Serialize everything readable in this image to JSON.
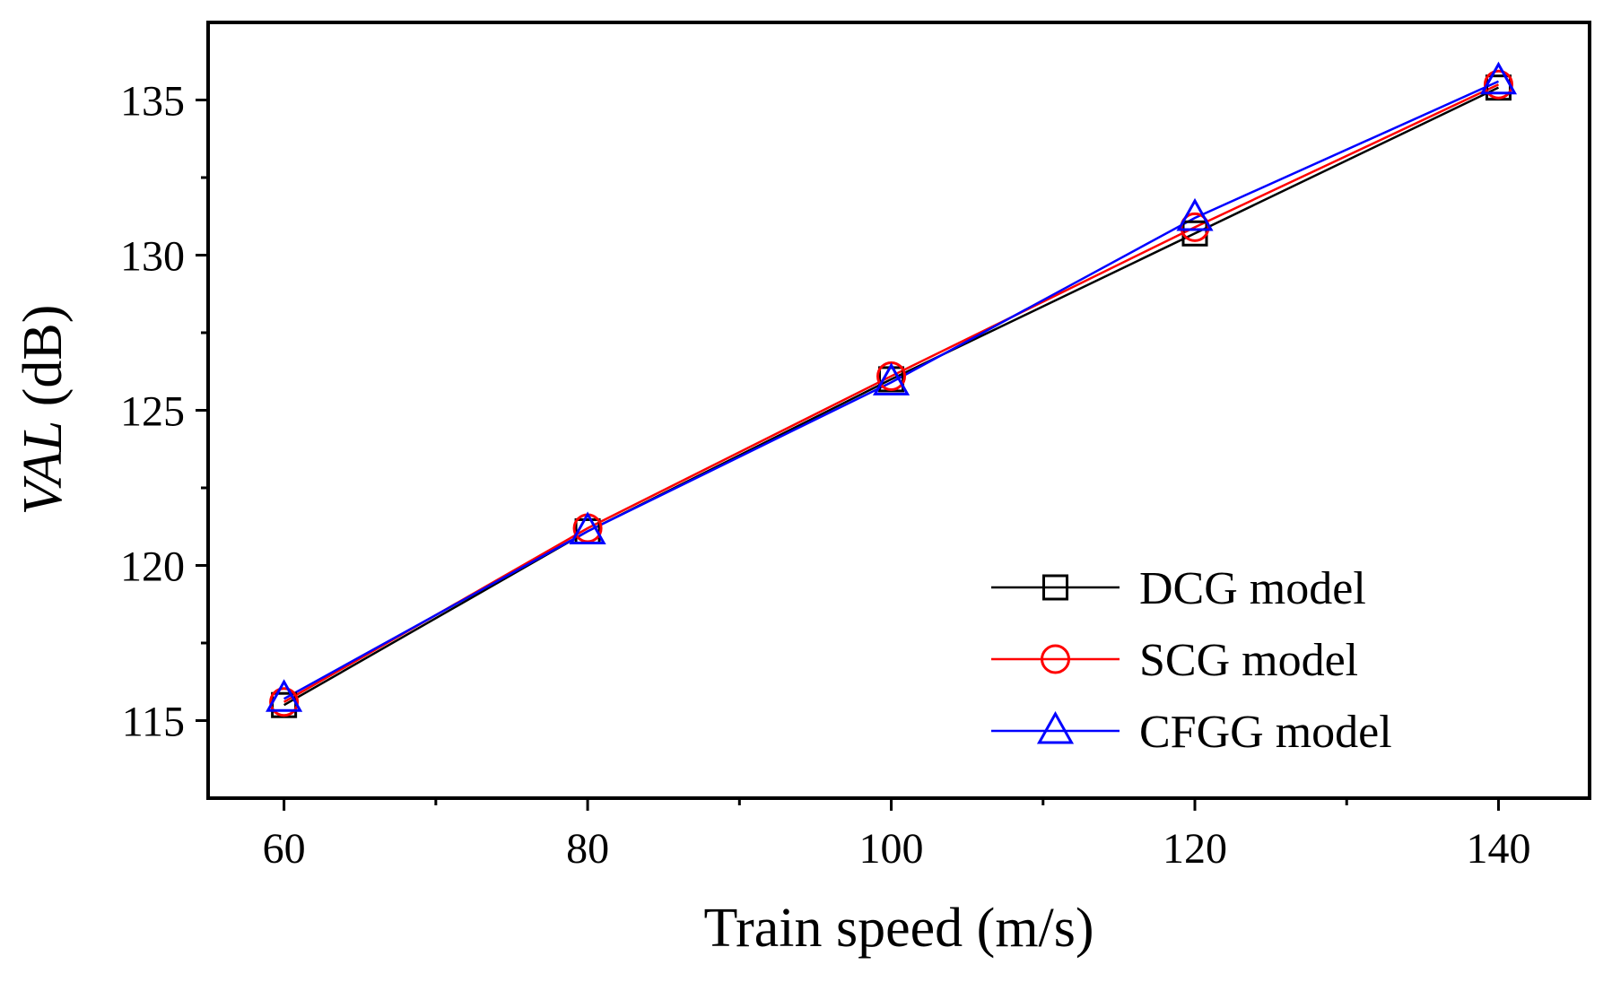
{
  "chart_data": {
    "type": "line",
    "title": "",
    "xlabel": "Train speed (m/s)",
    "ylabel_italic": "VAL",
    "ylabel_unit": " (dB)",
    "x": [
      60,
      80,
      100,
      120,
      140
    ],
    "xlim": [
      55,
      146
    ],
    "ylim": [
      112.5,
      137.5
    ],
    "xticks": [
      60,
      80,
      100,
      120,
      140
    ],
    "xticks_minor": [
      70,
      90,
      110,
      130
    ],
    "yticks": [
      115,
      120,
      125,
      130,
      135
    ],
    "yticks_minor": [
      117.5,
      122.5,
      127.5,
      132.5
    ],
    "grid": false,
    "legend_position": "bottom-right",
    "series": [
      {
        "name": "DCG model",
        "values": [
          115.5,
          121.1,
          126.0,
          130.7,
          135.4
        ],
        "color": "#000000",
        "marker": "square"
      },
      {
        "name": "SCG model",
        "values": [
          115.6,
          121.2,
          126.1,
          130.9,
          135.5
        ],
        "color": "#ff0000",
        "marker": "circle"
      },
      {
        "name": "CFGG model",
        "values": [
          115.7,
          121.1,
          125.9,
          131.2,
          135.6
        ],
        "color": "#0000ff",
        "marker": "triangle"
      }
    ]
  }
}
